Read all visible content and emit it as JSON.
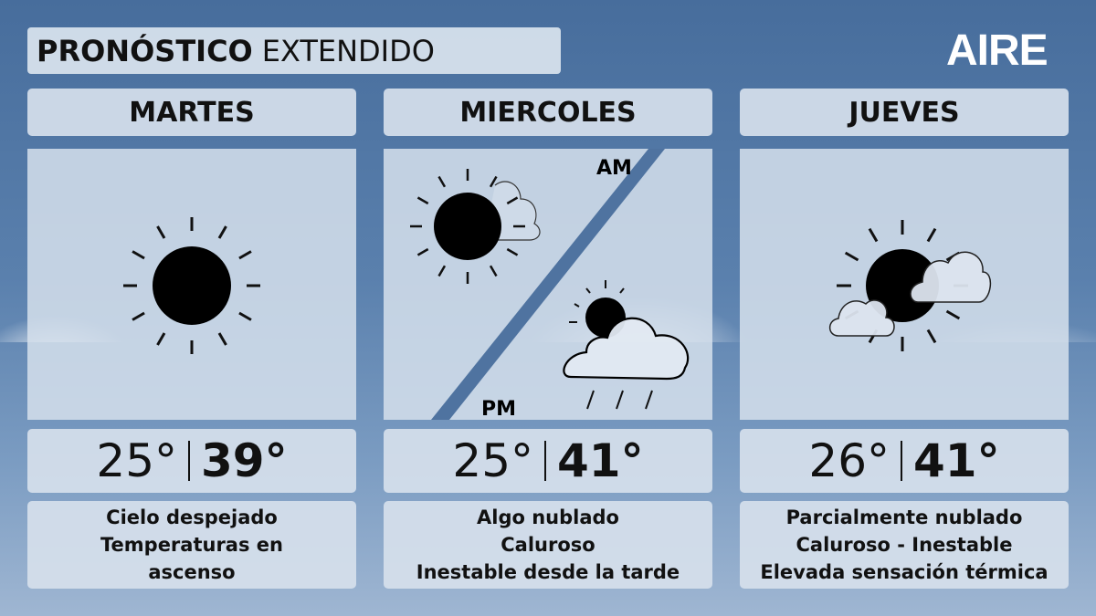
{
  "header": {
    "title_bold": "PRONÓSTICO",
    "title_regular": "EXTENDIDO",
    "logo": "AIRE"
  },
  "days": [
    {
      "name": "MARTES",
      "icon": "sun-icon",
      "min": "25°",
      "max": "39°",
      "desc": [
        "Cielo despejado",
        "Temperaturas en",
        "ascenso"
      ]
    },
    {
      "name": "MIERCOLES",
      "icon": "sun-cloud-am-storm-cloud-pm-icon",
      "am_label": "AM",
      "pm_label": "PM",
      "min": "25°",
      "max": "41°",
      "desc": [
        "Algo nublado",
        "Caluroso",
        "Inestable desde la tarde"
      ]
    },
    {
      "name": "JUEVES",
      "icon": "partly-cloudy-icon",
      "min": "26°",
      "max": "41°",
      "desc": [
        "Parcialmente nublado",
        "Caluroso - Inestable",
        "Elevada sensación térmica"
      ]
    }
  ],
  "colors": {
    "accent": "#4f73a0",
    "panel": "#d6e0ec"
  }
}
